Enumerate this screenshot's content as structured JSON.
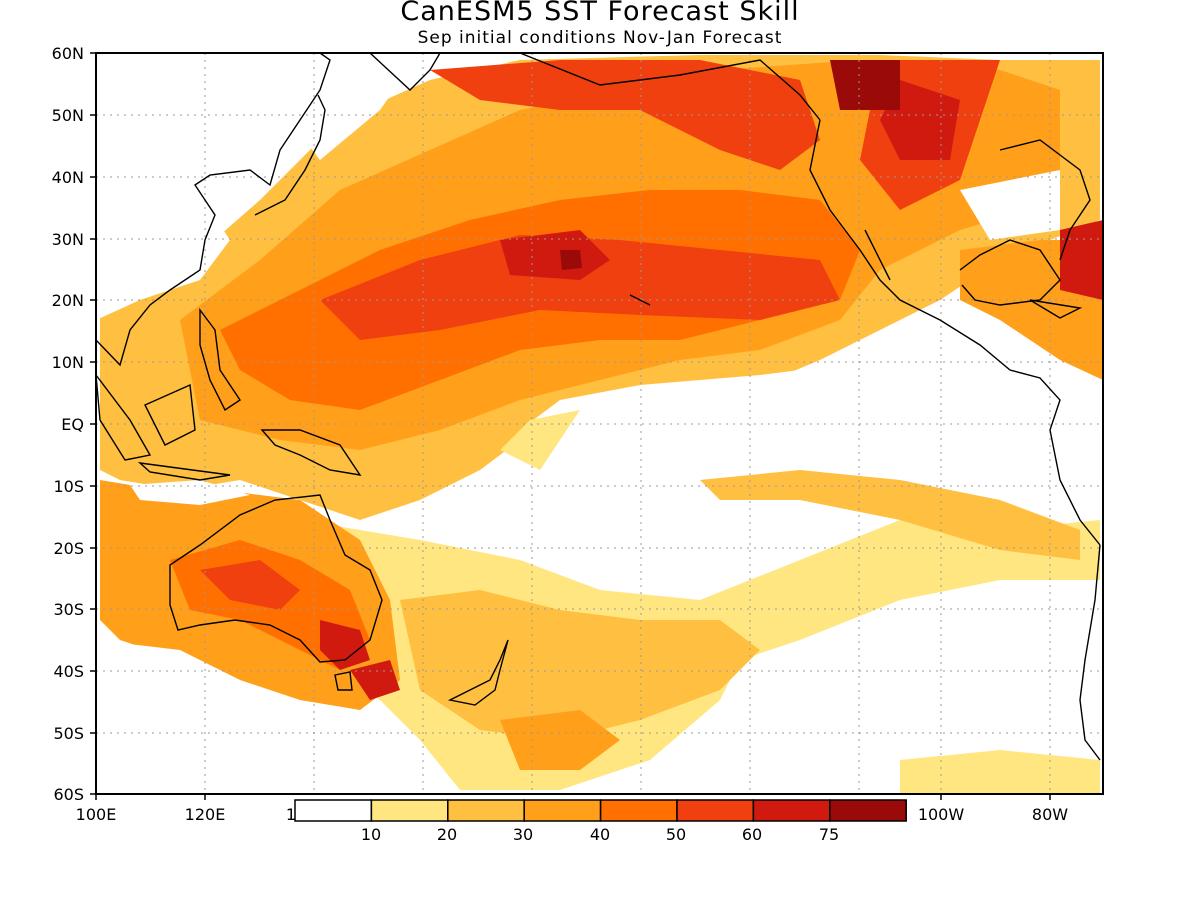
{
  "title": "CanESM5 SST Forecast Skill",
  "subtitle": "Sep initial conditions  Nov-Jan Forecast",
  "map": {
    "lon_range": [
      100,
      285
    ],
    "lat_range": [
      -60,
      60
    ],
    "lat_tick_labels": [
      "60N",
      "50N",
      "40N",
      "30N",
      "20N",
      "10N",
      "EQ",
      "10S",
      "20S",
      "30S",
      "40S",
      "50S",
      "60S"
    ],
    "lon_tick_labels": [
      "100E",
      "120E",
      "1",
      "100W",
      "80W"
    ]
  },
  "colorbar": {
    "levels": [
      "10",
      "20",
      "30",
      "40",
      "50",
      "60",
      "75"
    ],
    "colors": [
      "#ffffff",
      "#ffe680",
      "#ffbf40",
      "#ff9f1a",
      "#ff7000",
      "#f04010",
      "#d01a10",
      "#9a0a08"
    ]
  },
  "shading": {
    "background_class": 0,
    "regions_class": "0=<10, 1=10-20, 2=20-30, 3=30-40, 4=40-50, 5=50-60, 6=60-75, 7=>75"
  }
}
